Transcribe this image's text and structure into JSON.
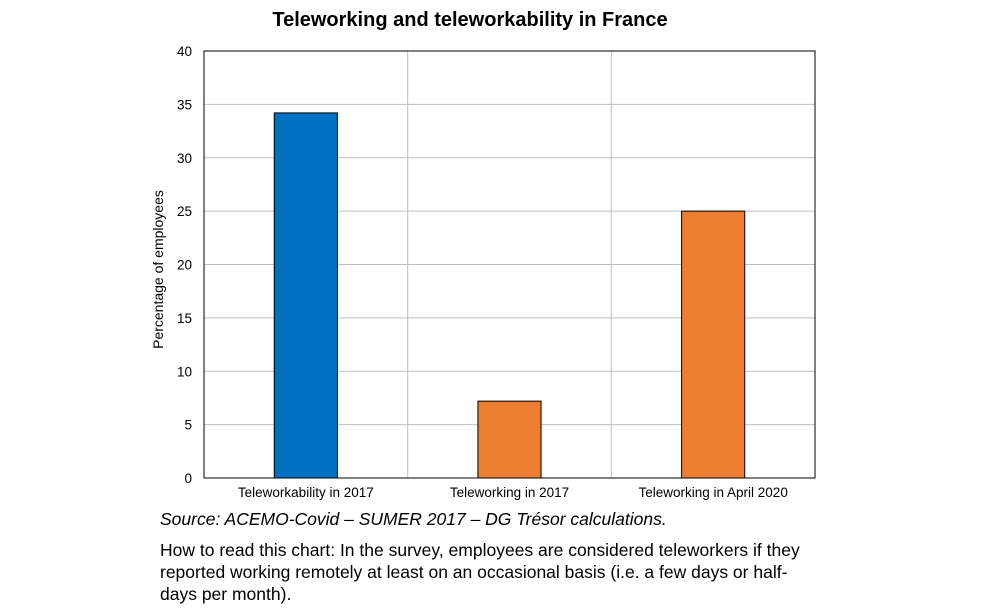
{
  "chart_data": {
    "type": "bar",
    "title": "Teleworking and teleworkability in France",
    "xlabel": "",
    "ylabel": "Percentage of employees",
    "ylim": [
      0,
      40
    ],
    "yticks": [
      0,
      5,
      10,
      15,
      20,
      25,
      30,
      35,
      40
    ],
    "categories": [
      "Teleworkability in 2017",
      "Teleworking in 2017",
      "Teleworking in April 2020"
    ],
    "values": [
      34.2,
      7.2,
      25.0
    ],
    "bar_colors": [
      "#0070C0",
      "#ED7D31",
      "#ED7D31"
    ],
    "grid": true,
    "legend": "none"
  },
  "notes": {
    "source": "Source: ACEMO-Covid – SUMER 2017 – DG Trésor calculations.",
    "reading": "How to read this chart: In the survey, employees are considered teleworkers if they reported working remotely at least on an occasional basis (i.e. a few days or half-days per month)."
  }
}
